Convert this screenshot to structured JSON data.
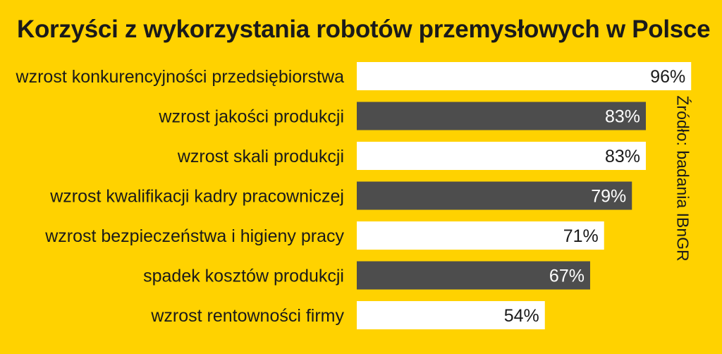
{
  "chart_data": {
    "type": "bar",
    "orientation": "horizontal",
    "title": "Korzyści z wykorzystania robotów przemysłowych w Polsce",
    "categories": [
      "wzrost konkurencyjności przedsiębiorstwa",
      "wzrost jakości produkcji",
      "wzrost skali produkcji",
      "wzrost kwalifikacji kadry pracowniczej",
      "wzrost bezpieczeństwa i higieny pracy",
      "spadek kosztów produkcji",
      "wzrost rentowności firmy"
    ],
    "values": [
      96,
      83,
      83,
      79,
      71,
      67,
      54
    ],
    "value_labels": [
      "96%",
      "83%",
      "83%",
      "79%",
      "71%",
      "67%",
      "54%"
    ],
    "unit": "%",
    "xlim": [
      0,
      100
    ],
    "bar_colors": [
      "#FFFFFF",
      "#4D4D4D",
      "#FFFFFF",
      "#4D4D4D",
      "#FFFFFF",
      "#4D4D4D",
      "#FFFFFF"
    ],
    "label_colors": [
      "#1a1a1a",
      "#FFFFFF",
      "#1a1a1a",
      "#FFFFFF",
      "#1a1a1a",
      "#FFFFFF",
      "#1a1a1a"
    ],
    "grid": false,
    "legend": "none"
  },
  "source": "Źródło: badania IBnGR",
  "colors": {
    "background": "#FFD200",
    "text": "#1a1a1a"
  }
}
